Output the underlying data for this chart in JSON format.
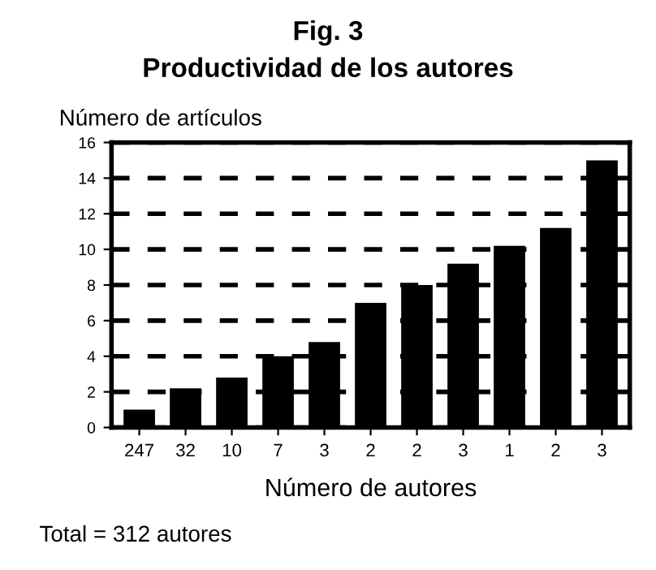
{
  "chart_data": {
    "type": "bar",
    "title": "Fig. 3",
    "subtitle": "Productividad de los autores",
    "ylabel": "Número de artículos",
    "xlabel": "Número de autores",
    "categories": [
      "247",
      "32",
      "10",
      "7",
      "3",
      "2",
      "2",
      "3",
      "1",
      "2",
      "3"
    ],
    "values": [
      1,
      2.2,
      2.8,
      4,
      4.8,
      7,
      8,
      9.2,
      10.2,
      11.2,
      15
    ],
    "color": "#000000",
    "ylim": [
      0,
      16
    ],
    "yticks": [
      0,
      2,
      4,
      6,
      8,
      10,
      12,
      14,
      16
    ],
    "grid": "y",
    "line_style": "dashed",
    "annotations": [
      "Total = 312 autores"
    ]
  }
}
